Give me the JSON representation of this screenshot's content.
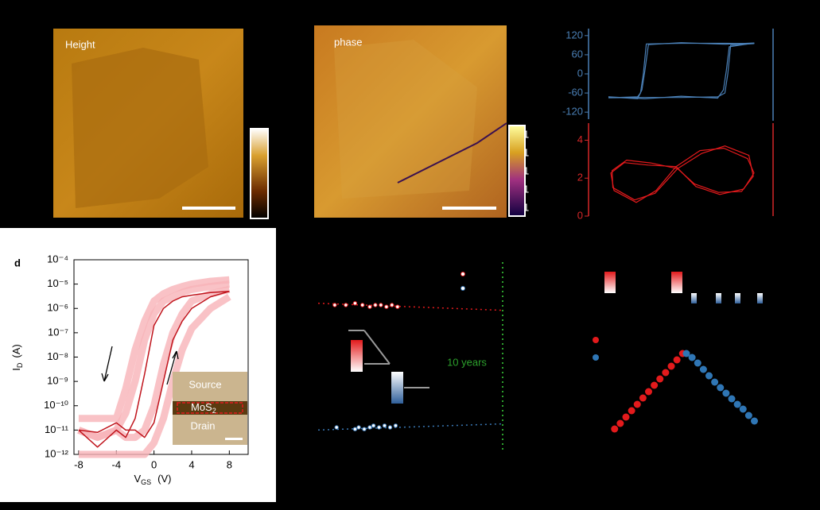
{
  "images": [
    {
      "label": "Height"
    },
    {
      "label": "phase",
      "colorbar_labels": [
        "1",
        "1",
        "1",
        "1",
        "1"
      ]
    }
  ],
  "chart_data": [
    {
      "type": "line",
      "axis_color": "#4a7fb5",
      "xlim": [
        -10,
        10
      ],
      "ylim": [
        -142,
        142
      ],
      "yticks": [
        120,
        60,
        0,
        -60,
        -120
      ],
      "series": [
        {
          "color": "#4a7fb5",
          "x": [
            -10,
            -5,
            0,
            5,
            6,
            6.4,
            6.8,
            10,
            6,
            0,
            -4.8,
            -5.2,
            -5.6,
            -6,
            -10
          ],
          "values": [
            -75,
            -74,
            -74,
            -72,
            -60,
            0,
            90,
            95,
            96,
            96,
            94,
            0,
            -60,
            -72,
            -75
          ]
        },
        {
          "color": "#4a7fb5",
          "x": [
            -10,
            -5,
            0,
            5,
            5.8,
            6.2,
            6.6,
            10,
            6,
            0,
            -4.5,
            -5,
            -5.4,
            -6,
            -10
          ],
          "values": [
            -72,
            -78,
            -70,
            -76,
            -50,
            10,
            85,
            97,
            93,
            98,
            92,
            10,
            -50,
            -78,
            -72
          ]
        }
      ]
    },
    {
      "type": "line",
      "axis_color": "#d62728",
      "xlim": [
        -10,
        10
      ],
      "ylim": [
        0,
        4.9
      ],
      "yticks": [
        4,
        2,
        0
      ],
      "series": [
        {
          "color": "#e31a1c",
          "x": [
            -0.71,
            2.57,
            5.85,
            9.13,
            10,
            8.58,
            5.3,
            2.02,
            -0.71,
            -3.44,
            -6.17,
            -9.23,
            -9.67,
            -7.81,
            -4.54,
            -0.71
          ],
          "values": [
            2.61,
            3.45,
            3.58,
            3.03,
            2.27,
            1.43,
            1.14,
            1.56,
            2.61,
            1.35,
            0.72,
            1.35,
            2.27,
            2.82,
            2.69,
            2.61
          ]
        },
        {
          "color": "#e31a1c",
          "x": [
            -0.5,
            2.8,
            6,
            9.3,
            9.9,
            8.3,
            5.1,
            1.8,
            -0.5,
            -3.6,
            -6.4,
            -9.4,
            -9.5,
            -7.5,
            -4.2,
            -0.5
          ],
          "values": [
            2.5,
            3.3,
            3.7,
            3.2,
            2.1,
            1.3,
            1.25,
            1.7,
            2.5,
            1.2,
            0.85,
            1.5,
            2.4,
            2.95,
            2.8,
            2.5
          ]
        }
      ]
    },
    {
      "type": "line",
      "panel_label": "d",
      "log_y": true,
      "xlabel": {
        "main": "V",
        "sub": "GS",
        "unit": "(V)"
      },
      "ylabel": {
        "main": "I",
        "sub": "D",
        "unit": "(A)"
      },
      "inset": {
        "top": "Source",
        "material": "MoS",
        "material_sub": "2",
        "bottom": "Drain"
      },
      "xlim": [
        -8.5,
        10
      ],
      "ylim": [
        1e-12,
        0.0001
      ],
      "xticks": [
        -8,
        -4,
        0,
        4,
        8
      ],
      "yticks": [
        {
          "value": 0.0001,
          "label": "10⁻⁴"
        },
        {
          "value": 1e-05,
          "label": "10⁻⁵"
        },
        {
          "value": 1e-06,
          "label": "10⁻⁶"
        },
        {
          "value": 1e-07,
          "label": "10⁻⁷"
        },
        {
          "value": 1e-08,
          "label": "10⁻⁸"
        },
        {
          "value": 1e-09,
          "label": "10⁻⁹"
        },
        {
          "value": 1e-10,
          "label": "10⁻¹⁰"
        },
        {
          "value": 1e-11,
          "label": "10⁻¹¹"
        },
        {
          "value": 1e-12,
          "label": "10⁻¹²"
        }
      ],
      "x": [
        -8,
        -6,
        -4,
        -3,
        -2,
        -1,
        0,
        1,
        2,
        3,
        4,
        6,
        8
      ],
      "series": [
        {
          "color": "#f7b3b8",
          "width": 9,
          "values": [
            3e-11,
            3e-11,
            3e-11,
            5e-10,
            2e-08,
            3e-07,
            2e-06,
            4e-06,
            6e-06,
            8e-06,
            1e-05,
            1.3e-05,
            1.5e-05
          ]
        },
        {
          "color": "#f7b3b8",
          "width": 9,
          "values": [
            1e-12,
            1e-12,
            1e-12,
            1e-12,
            1e-12,
            1e-12,
            3e-12,
            3e-11,
            1e-09,
            2e-08,
            1.5e-07,
            1e-06,
            3e-06
          ]
        },
        {
          "color": "#f7b3b8",
          "width": 9,
          "values": [
            1e-11,
            5e-12,
            1e-11,
            5e-11,
            1e-09,
            5e-08,
            6e-07,
            2e-06,
            3e-06,
            4.5e-06,
            6e-06,
            8e-06,
            1e-05
          ]
        },
        {
          "color": "#f7b3b8",
          "width": 9,
          "values": [
            1e-11,
            5e-12,
            1e-11,
            5e-12,
            5e-12,
            1e-11,
            1e-10,
            5e-09,
            1e-07,
            6e-07,
            2e-06,
            4e-06,
            6e-06
          ]
        },
        {
          "color": "#c0141c",
          "width": 1.5,
          "values": [
            1e-11,
            2e-12,
            1e-11,
            5e-12,
            3e-11,
            2e-09,
            2e-07,
            1e-06,
            2e-06,
            3e-06,
            3.5e-06,
            4.5e-06,
            5e-06
          ]
        },
        {
          "color": "#c0141c",
          "width": 1.5,
          "values": [
            1e-11,
            8e-12,
            2e-11,
            1e-11,
            1e-11,
            5e-12,
            2e-11,
            1e-09,
            5e-08,
            3e-07,
            1e-06,
            3e-06,
            5e-06
          ]
        }
      ]
    },
    {
      "type": "scatter",
      "xlim": [
        0,
        10
      ],
      "ylim": [
        0,
        1
      ],
      "vline": 10,
      "vline_color": "#2ca02c",
      "annotation": "10 years",
      "series": [
        {
          "color": "#e31a1c",
          "style": "dotted",
          "x": [
            0,
            10
          ],
          "values": [
            0.81,
            0.77
          ]
        },
        {
          "color": "#e31a1c",
          "style": "scatter",
          "x": [
            0.9,
            1.5,
            2,
            2.4,
            2.8,
            3.1,
            3.4,
            3.7,
            4,
            4.3
          ],
          "values": [
            0.8,
            0.8,
            0.81,
            0.8,
            0.79,
            0.8,
            0.8,
            0.79,
            0.8,
            0.79
          ]
        },
        {
          "color": "#3a78b5",
          "style": "dotted",
          "x": [
            0,
            10
          ],
          "values": [
            0.085,
            0.12
          ]
        },
        {
          "color": "#3a78b5",
          "style": "scatter",
          "x": [
            1,
            2,
            2.2,
            2.5,
            2.8,
            3,
            3.3,
            3.6,
            3.9,
            4.2
          ],
          "values": [
            0.1,
            0.09,
            0.1,
            0.09,
            0.1,
            0.11,
            0.1,
            0.11,
            0.1,
            0.11
          ]
        }
      ]
    },
    {
      "type": "scatter",
      "xlim": [
        0,
        40
      ],
      "ylim": [
        0,
        1.1
      ],
      "series": [
        {
          "color": "#e31a1c",
          "style": "scatter",
          "x": [
            1,
            2.5,
            4,
            5.5,
            7,
            8.5,
            10,
            11.5,
            13,
            14.5,
            16,
            17.5,
            19
          ],
          "values": [
            0.05,
            0.12,
            0.2,
            0.28,
            0.36,
            0.44,
            0.52,
            0.6,
            0.68,
            0.76,
            0.84,
            0.92,
            1.0
          ]
        },
        {
          "color": "#2f76b5",
          "style": "scatter",
          "x": [
            20,
            21.5,
            23,
            24.5,
            26,
            27.5,
            29,
            30.5,
            32,
            33.5,
            35,
            36.5,
            38
          ],
          "values": [
            1.0,
            0.95,
            0.88,
            0.8,
            0.72,
            0.64,
            0.57,
            0.5,
            0.43,
            0.36,
            0.3,
            0.22,
            0.15
          ]
        }
      ]
    }
  ]
}
